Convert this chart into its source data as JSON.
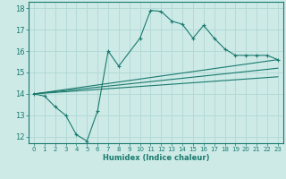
{
  "title": "",
  "xlabel": "Humidex (Indice chaleur)",
  "ylabel": "",
  "background_color": "#cdeae7",
  "grid_color": "#b0d8d4",
  "line_color": "#1a7a6e",
  "xlim": [
    -0.5,
    23.5
  ],
  "ylim": [
    11.7,
    18.3
  ],
  "yticks": [
    12,
    13,
    14,
    15,
    16,
    17,
    18
  ],
  "xticks": [
    0,
    1,
    2,
    3,
    4,
    5,
    6,
    7,
    8,
    9,
    10,
    11,
    12,
    13,
    14,
    15,
    16,
    17,
    18,
    19,
    20,
    21,
    22,
    23
  ],
  "series1_x": [
    0,
    1,
    2,
    3,
    4,
    5,
    6,
    7,
    8,
    10,
    11,
    12,
    13,
    14,
    15,
    16,
    17,
    18,
    19,
    20,
    21,
    22,
    23
  ],
  "series1_y": [
    14.0,
    13.9,
    13.4,
    13.0,
    12.1,
    11.8,
    13.2,
    16.0,
    15.3,
    16.6,
    17.9,
    17.85,
    17.4,
    17.25,
    16.6,
    17.2,
    16.6,
    16.1,
    15.8,
    15.8,
    15.8,
    15.8,
    15.6
  ],
  "series2_x": [
    0,
    23
  ],
  "series2_y": [
    14.0,
    15.6
  ],
  "series3_x": [
    0,
    23
  ],
  "series3_y": [
    14.0,
    15.2
  ],
  "series4_x": [
    0,
    23
  ],
  "series4_y": [
    14.0,
    14.8
  ]
}
